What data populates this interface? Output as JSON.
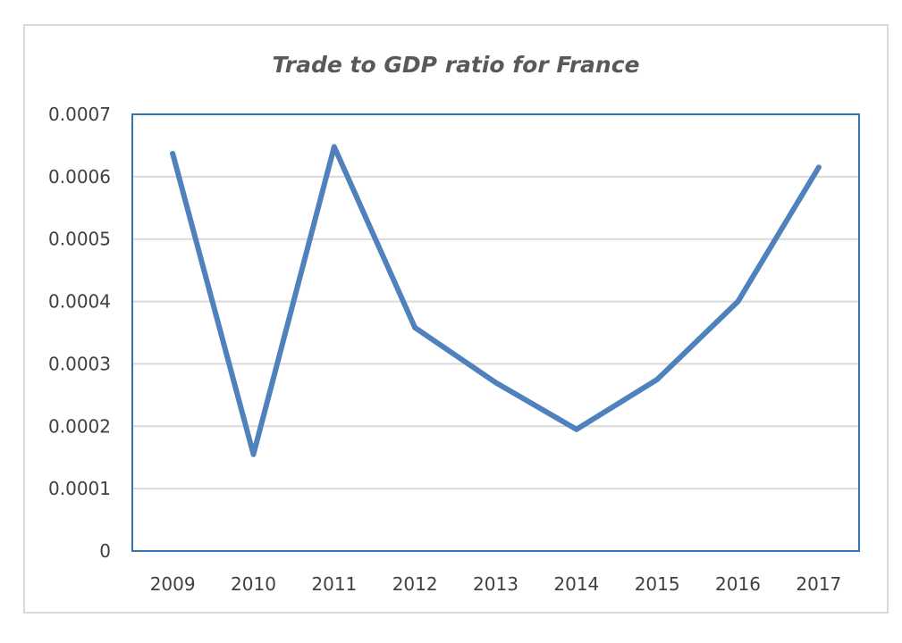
{
  "chart_data": {
    "type": "line",
    "title": "Trade to GDP ratio for France",
    "xlabel": "",
    "ylabel": "",
    "categories": [
      "2009",
      "2010",
      "2011",
      "2012",
      "2013",
      "2014",
      "2015",
      "2016",
      "2017"
    ],
    "series": [
      {
        "values": [
          0.000637,
          0.000155,
          0.000648,
          0.000358,
          0.00027,
          0.000195,
          0.000275,
          0.0004,
          0.000615
        ]
      }
    ],
    "y_ticks": [
      "0",
      "0.0001",
      "0.0002",
      "0.0003",
      "0.0004",
      "0.0005",
      "0.0006",
      "0.0007"
    ],
    "ylim": [
      0,
      0.0007
    ],
    "grid": true,
    "legend": "none",
    "colors": {
      "line": "#4f81bd",
      "plot_border": "#2e75b6",
      "grid": "#d9d9d9",
      "frame": "#d9d9d9"
    }
  }
}
